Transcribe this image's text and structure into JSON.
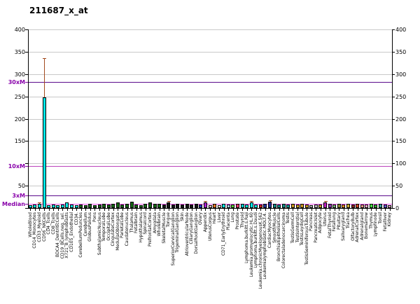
{
  "title": "211687_x_at",
  "chart_data": {
    "type": "bar",
    "title": "211687_x_at",
    "xlabel": "",
    "ylabel": "",
    "ylim": [
      0,
      400
    ],
    "yticks": [
      0,
      50,
      100,
      150,
      200,
      250,
      300,
      350,
      400
    ],
    "left_axis_visible_tick_labels": [
      "400",
      "350",
      "300",
      "250",
      "200",
      "150",
      "50"
    ],
    "right_axis_visible_tick_labels": [
      "400",
      "350",
      "300",
      "250",
      "200",
      "150",
      "100",
      "50",
      "0"
    ],
    "grid": true,
    "legend": "none",
    "reference_lines": [
      {
        "label": "30xM",
        "value": 283,
        "line_color": "#5a0a8c",
        "label_color": "#8800aa"
      },
      {
        "label": "10xM",
        "value": 94,
        "line_color": "#bb44bb",
        "label_color": "#8800aa"
      },
      {
        "label": "3xM",
        "value": 28,
        "line_color": "#5a0a8c",
        "label_color": "#8800aa"
      },
      {
        "label": "Median",
        "value": 9.4,
        "line_color": "#ee55ee",
        "label_color": "#8800aa"
      }
    ],
    "error_bar_color": "#a34a1e",
    "categories": [
      "WholeBlood",
      "CD14_Monocytes",
      "CD33_Myeloid",
      "CD56_NKCells",
      "CD4_Tcells",
      "CD8_Tcells",
      "BDCA4_DentriticCells",
      "CD19_BCells.neg._sel.",
      "X721_B_lymphoblasts",
      "CD105_Endothelial",
      "CD34.",
      "CerebellumPeduncles",
      "Cerebellum",
      "GlobusPalidus",
      "Pons",
      "SubthalamicNucleus",
      "TemporalLobe",
      "OccipitalLobe",
      "CingulateCortex",
      "MedullaOblongata",
      "ParietalLobe",
      "Caudatenucleus",
      "Thalamus",
      "Fetalbrain",
      "Hypothalamus",
      "Spinalcord",
      "PrefrontalCortex",
      "Amygdala",
      "Wholebrain",
      "SkeletalMuscle",
      "Tongue",
      "SuperiorCervicalGanglion",
      "TrigeminalGanglion",
      "Skin",
      "AtrioventricularNode",
      "CiliaryGanglion",
      "DorsalRootGanglion",
      "Ovary",
      "Appendix",
      "UterusCorpus",
      "Heart",
      "Liver",
      "CD71_EarlyErythroid",
      "Placenta",
      "Lung",
      "Prostate",
      "Thyroid",
      "Lymphoma.burkitt.s.Raji",
      "Leukemia.promyelocytic.HL.60",
      "Lymphoma.burkitt.s.Daudi",
      "Leukemia.chronicMyelogenousK.562",
      "Leukemialymphoblastic.MOLT.4.",
      "CardiacMyocytes",
      "SmoothMuscle",
      "BronchialEpithelialCells",
      "Colorectaladenocarcinoma",
      "Testis",
      "TestisGermCell",
      "TestisInterstial",
      "TestisLeydigCell",
      "TestisSeminiferousTubule",
      "Pancreas",
      "PancreaticIslet",
      "Adipocyte",
      "Uterus",
      "FetalThyroid",
      "Fetallung",
      "Pituitary",
      "Salivarygland",
      "Trachea",
      "OlfactoryBulb",
      "AdrenalCortex",
      "Adrenalgland",
      "Bonemarrow",
      "Thymus",
      "Lymphnode",
      "Tonsil",
      "Fetalliver",
      "Kidney"
    ],
    "values": [
      7,
      8,
      10,
      248,
      7,
      8,
      7,
      8,
      12,
      8,
      7,
      8,
      7,
      9,
      7,
      8,
      10,
      8,
      9,
      12,
      8,
      9,
      14,
      8,
      7,
      9,
      13,
      10,
      9,
      8,
      13,
      8,
      9,
      8,
      9,
      8,
      9,
      8,
      13,
      7,
      9,
      7,
      9,
      8,
      8,
      9,
      9,
      8,
      12,
      8,
      8,
      9,
      14,
      9,
      8,
      9,
      8,
      9,
      8,
      9,
      8,
      7,
      8,
      8,
      13,
      9,
      8,
      9,
      8,
      9,
      8,
      9,
      8,
      8,
      9,
      8,
      9,
      8,
      7
    ],
    "errors_high": [
      null,
      null,
      13,
      335,
      null,
      null,
      null,
      null,
      null,
      null,
      null,
      null,
      null,
      null,
      null,
      null,
      null,
      null,
      null,
      null,
      null,
      null,
      null,
      null,
      null,
      null,
      null,
      null,
      null,
      null,
      16,
      null,
      null,
      null,
      null,
      null,
      null,
      null,
      16,
      null,
      null,
      null,
      null,
      null,
      null,
      null,
      null,
      null,
      15,
      null,
      null,
      null,
      17,
      null,
      null,
      null,
      null,
      null,
      null,
      null,
      null,
      null,
      null,
      null,
      16,
      null,
      null,
      null,
      null,
      null,
      null,
      null,
      null,
      null,
      null,
      null,
      null,
      null,
      null
    ],
    "bar_colors": [
      "#00E6E6",
      "#00E6E6",
      "#00E6E6",
      "#00E6E6",
      "#00E6E6",
      "#00E6E6",
      "#00E6E6",
      "#00E6E6",
      "#00E6E6",
      "#00E6E6",
      "#00E6E6",
      "#156615",
      "#156615",
      "#156615",
      "#156615",
      "#156615",
      "#156615",
      "#156615",
      "#156615",
      "#156615",
      "#156615",
      "#156615",
      "#156615",
      "#156615",
      "#156615",
      "#156615",
      "#156615",
      "#156615",
      "#156615",
      "#141414",
      "#141414",
      "#141414",
      "#141414",
      "#141414",
      "#141414",
      "#141414",
      "#141414",
      "#2233CC",
      "#AA22CC",
      "#EEC9C9",
      "#EE7722",
      "#F5EEDC",
      "#00E6E6",
      "#AACCEE",
      "#55CC33",
      "#EE3366",
      "#00CCCC",
      "#00E6E6",
      "#00E6E6",
      "#00E6E6",
      "#CC2222",
      "#223399",
      "#223399",
      "#118888",
      "#118888",
      "#118888",
      "#119999",
      "#CC9922",
      "#CC9922",
      "#CC9922",
      "#CC9922",
      "#AAAAAA",
      "#BBBBBB",
      "#CC9922",
      "#BB22BB",
      "#8833AA",
      "#77AA77",
      "#888833",
      "#EE8822",
      "#CCAA33",
      "#882222",
      "#CC4422",
      "#EE9988",
      "#FFAACC",
      "#44DD44",
      "#33AA33",
      "#339999",
      "#6655CC",
      "#DD99BB"
    ]
  }
}
